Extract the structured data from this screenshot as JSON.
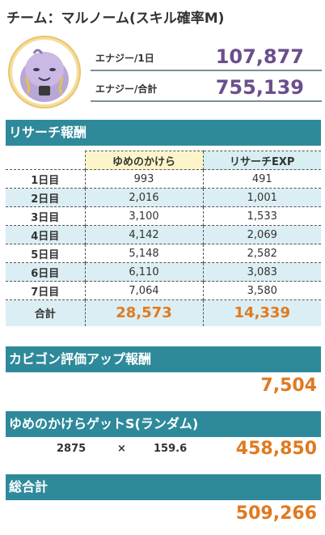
{
  "title": "チーム：マルノーム(スキル確率M)",
  "energy": {
    "per_day_label": "エナジー/1日",
    "per_day_value": "107,877",
    "total_label": "エナジー/合計",
    "total_value": "755,139"
  },
  "research": {
    "header": "リサーチ報酬",
    "col_dream": "ゆめのかけら",
    "col_exp": "リサーチEXP",
    "rows": [
      {
        "day": "1日目",
        "dream": "993",
        "exp": "491"
      },
      {
        "day": "2日目",
        "dream": "2,016",
        "exp": "1,001"
      },
      {
        "day": "3日目",
        "dream": "3,100",
        "exp": "1,533"
      },
      {
        "day": "4日目",
        "dream": "4,142",
        "exp": "2,069"
      },
      {
        "day": "5日目",
        "dream": "5,148",
        "exp": "2,582"
      },
      {
        "day": "6日目",
        "dream": "6,110",
        "exp": "3,083"
      },
      {
        "day": "7日目",
        "dream": "7,064",
        "exp": "3,580"
      }
    ],
    "total_label": "合計",
    "total_dream": "28,573",
    "total_exp": "14,339"
  },
  "snorlax": {
    "header": "カビゴン評価アップ報酬",
    "value": "7,504"
  },
  "dream_get": {
    "header": "ゆめのかけらゲットS(ランダム)",
    "count": "2875",
    "times": "×",
    "multiplier": "159.6",
    "value": "458,850"
  },
  "grand": {
    "header": "総合計",
    "value": "509,266"
  },
  "colors": {
    "section_header": "#2e8a9a",
    "accent_orange": "#e07a1f",
    "energy_purple": "#6a4f8c",
    "row_alt": "#dbeef3"
  },
  "icons": {
    "avatar": "swalot-avatar"
  }
}
